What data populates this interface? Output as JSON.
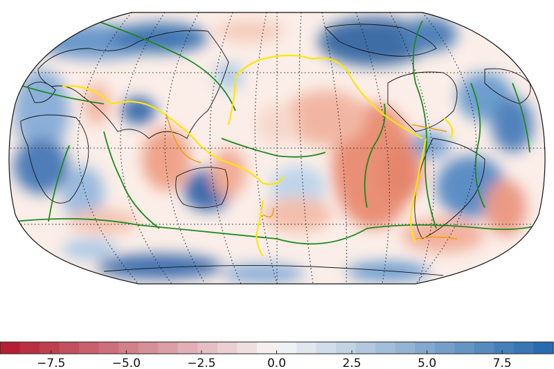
{
  "figure": {
    "colorscale": {
      "tick_labels": [
        "−7.5",
        "−5.0",
        "−2.5",
        "0.0",
        "2.5",
        "5.0",
        "7.5"
      ],
      "tick_values": [
        -7.5,
        -5.0,
        -2.5,
        0.0,
        2.5,
        5.0,
        7.5
      ],
      "range": [
        -9.2,
        9.2
      ],
      "negative_color": "#b2182b",
      "neutral_color": "#f7f7f7",
      "positive_color": "#2166ac"
    },
    "map": {
      "projection": "Robinson",
      "graticule": "dotted",
      "layers": [
        {
          "name": "coastlines",
          "color": "#000000"
        },
        {
          "name": "plate-boundaries",
          "color": "#1a8a1a"
        },
        {
          "name": "subduction-zones",
          "color": "#ffe600"
        },
        {
          "name": "slab-contours",
          "color": "#f0a000"
        }
      ]
    }
  }
}
